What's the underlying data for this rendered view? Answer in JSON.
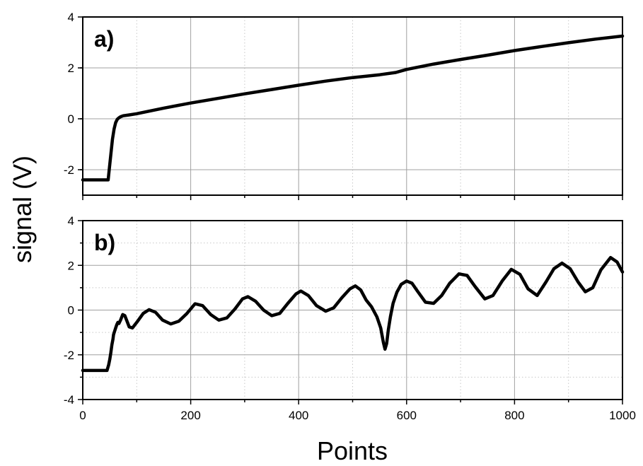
{
  "chart_data": [
    {
      "type": "line",
      "panel_label": "a)",
      "xlabel": "Points",
      "ylabel": "signal (V)",
      "xlim": [
        0,
        1000
      ],
      "ylim": [
        -3,
        4
      ],
      "xticks": [
        0,
        200,
        400,
        600,
        800,
        1000
      ],
      "yticks": [
        -2,
        0,
        2,
        4
      ],
      "grid": true,
      "series": [
        {
          "color": "#000000",
          "x": [
            0,
            47,
            49,
            52,
            55,
            58,
            61,
            64,
            67,
            70,
            75,
            85,
            100,
            150,
            200,
            250,
            300,
            350,
            400,
            450,
            500,
            550,
            580,
            600,
            650,
            700,
            750,
            800,
            850,
            900,
            950,
            1000
          ],
          "y": [
            -2.4,
            -2.4,
            -2.0,
            -1.4,
            -0.8,
            -0.4,
            -0.15,
            -0.02,
            0.04,
            0.08,
            0.12,
            0.15,
            0.2,
            0.42,
            0.62,
            0.8,
            0.98,
            1.15,
            1.32,
            1.48,
            1.62,
            1.73,
            1.82,
            1.94,
            2.15,
            2.33,
            2.5,
            2.68,
            2.84,
            2.99,
            3.13,
            3.25
          ]
        }
      ]
    },
    {
      "type": "line",
      "panel_label": "b)",
      "xlabel": "Points",
      "ylabel": "signal (V)",
      "xlim": [
        0,
        1000
      ],
      "ylim": [
        -4,
        4
      ],
      "xticks": [
        0,
        200,
        400,
        600,
        800,
        1000
      ],
      "xtick_labels": [
        "0",
        "200",
        "400",
        "600",
        "800",
        "1000"
      ],
      "yticks": [
        -4,
        -2,
        0,
        2,
        4
      ],
      "grid": true,
      "series": [
        {
          "color": "#000000",
          "x": [
            0,
            45,
            48,
            50,
            52,
            54,
            56,
            57,
            59,
            61,
            63,
            65,
            67,
            70,
            74,
            78,
            82,
            86,
            92,
            100,
            112,
            123,
            135,
            148,
            163,
            178,
            193,
            208,
            222,
            237,
            252,
            267,
            282,
            296,
            306,
            320,
            335,
            350,
            365,
            380,
            395,
            404,
            418,
            433,
            450,
            465,
            480,
            495,
            505,
            515,
            525,
            535,
            545,
            552,
            557,
            560,
            563,
            566,
            570,
            575,
            582,
            590,
            600,
            610,
            620,
            635,
            650,
            665,
            680,
            697,
            712,
            727,
            745,
            760,
            777,
            794,
            810,
            825,
            842,
            858,
            873,
            888,
            903,
            918,
            931,
            945,
            960,
            978,
            990,
            1000
          ],
          "y": [
            -2.7,
            -2.7,
            -2.45,
            -2.2,
            -1.9,
            -1.55,
            -1.3,
            -1.1,
            -0.95,
            -0.8,
            -0.65,
            -0.55,
            -0.6,
            -0.45,
            -0.2,
            -0.25,
            -0.5,
            -0.75,
            -0.8,
            -0.55,
            -0.15,
            0.02,
            -0.1,
            -0.45,
            -0.62,
            -0.5,
            -0.15,
            0.28,
            0.2,
            -0.2,
            -0.45,
            -0.35,
            0.05,
            0.5,
            0.6,
            0.4,
            0.0,
            -0.25,
            -0.15,
            0.3,
            0.72,
            0.85,
            0.65,
            0.2,
            -0.05,
            0.1,
            0.55,
            0.95,
            1.08,
            0.9,
            0.45,
            0.15,
            -0.3,
            -0.8,
            -1.45,
            -1.75,
            -1.5,
            -0.9,
            -0.3,
            0.3,
            0.8,
            1.15,
            1.3,
            1.2,
            0.85,
            0.35,
            0.3,
            0.65,
            1.2,
            1.62,
            1.55,
            1.05,
            0.5,
            0.65,
            1.3,
            1.82,
            1.6,
            0.95,
            0.65,
            1.25,
            1.85,
            2.1,
            1.85,
            1.25,
            0.82,
            1.0,
            1.8,
            2.35,
            2.15,
            1.7
          ]
        }
      ]
    }
  ]
}
